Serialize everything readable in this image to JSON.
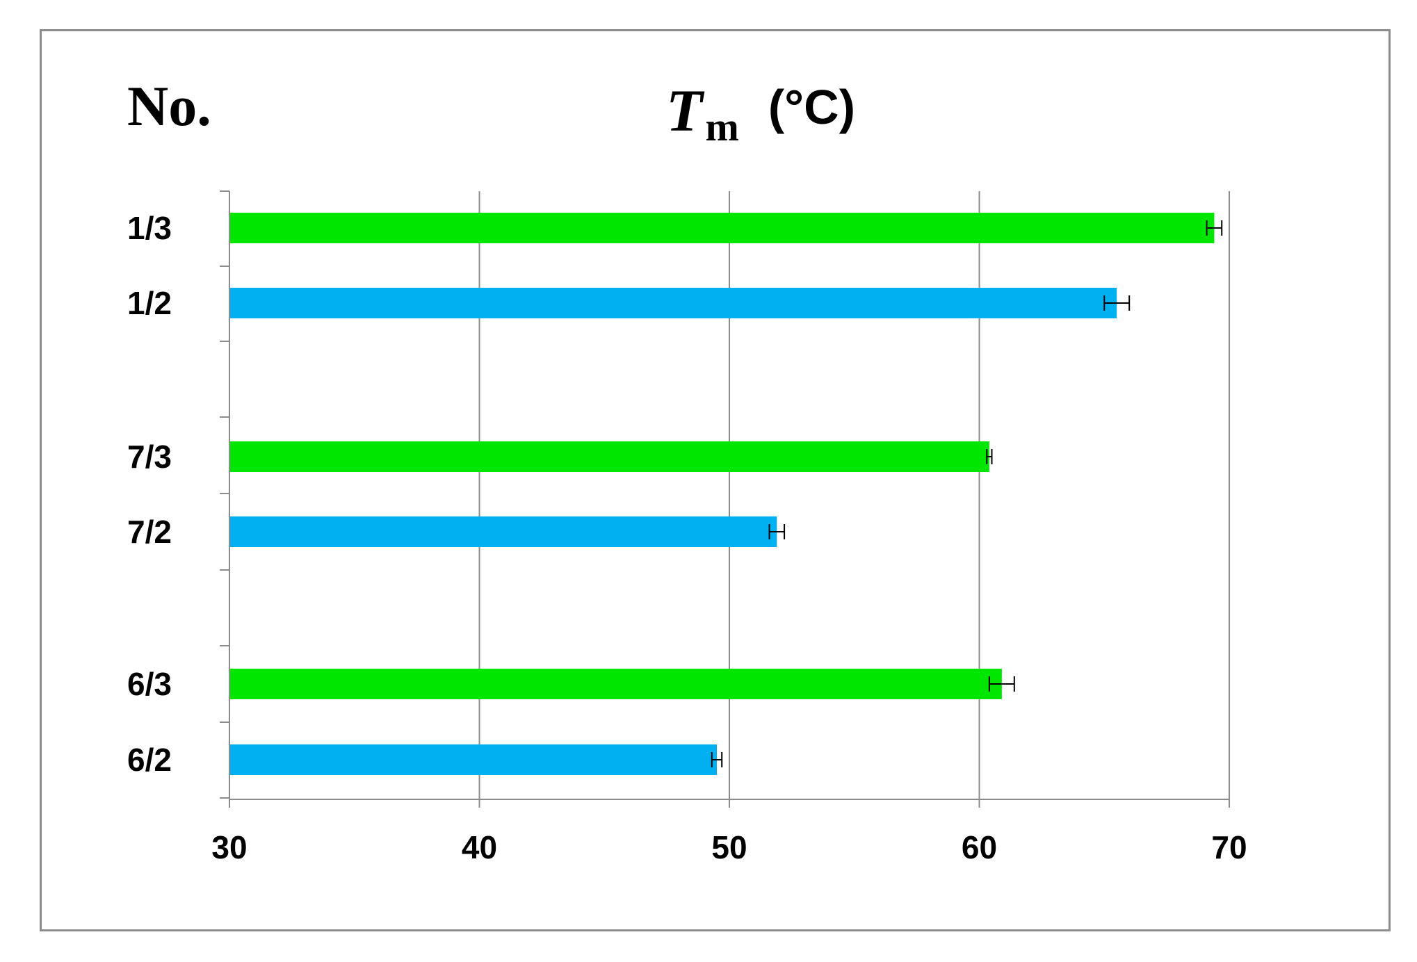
{
  "header": {
    "no_label": "No.",
    "tm_symbol": "T",
    "tm_subscript": "m",
    "unit": "(°C)"
  },
  "chart_data": {
    "type": "bar",
    "orientation": "horizontal",
    "title": "",
    "xlabel": "Tm (°C)",
    "ylabel": "No.",
    "xlim": [
      30,
      70
    ],
    "xticks": [
      "30",
      "40",
      "50",
      "60",
      "70"
    ],
    "grid": true,
    "colors": {
      "3": "#00e600",
      "2": "#00b0f0",
      "error_bar": "#000000",
      "gridline": "#8c8c8c"
    },
    "categories": [
      "1/3",
      "1/2",
      "7/3",
      "7/2",
      "6/3",
      "6/2"
    ],
    "values": [
      69.4,
      65.5,
      60.4,
      51.9,
      60.9,
      49.5
    ],
    "error": [
      0.3,
      0.5,
      0.1,
      0.3,
      0.5,
      0.2
    ],
    "bar_color_keys": [
      "3",
      "2",
      "3",
      "2",
      "3",
      "2"
    ],
    "groups": [
      [
        "1/3",
        "1/2"
      ],
      [
        "7/3",
        "7/2"
      ],
      [
        "6/3",
        "6/2"
      ]
    ]
  }
}
